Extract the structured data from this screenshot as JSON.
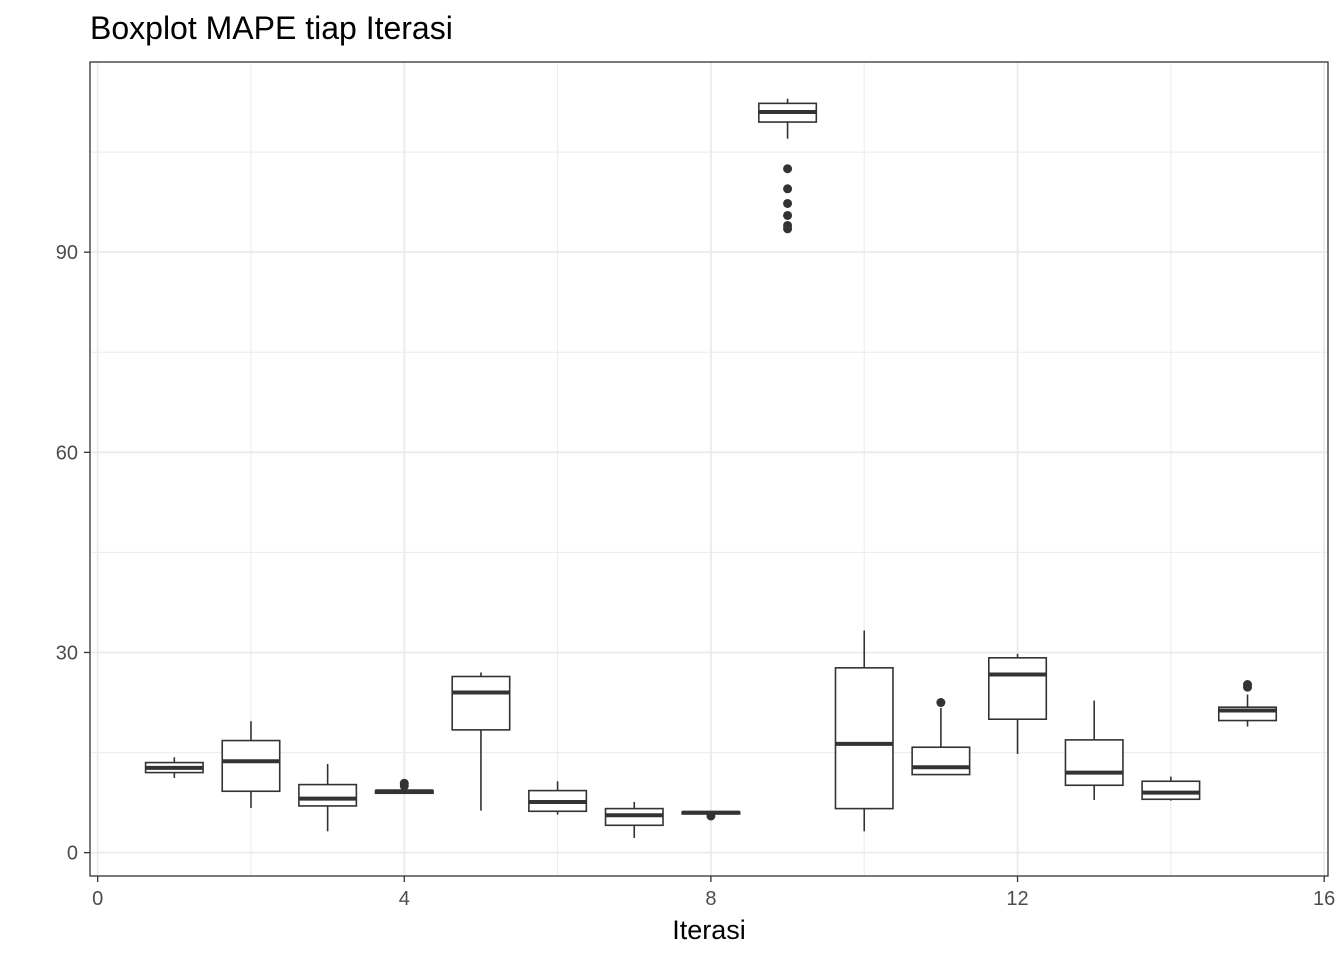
{
  "chart_data": {
    "type": "boxplot",
    "title": "Boxplot MAPE tiap Iterasi",
    "xlabel": "Iterasi",
    "ylabel": "",
    "xlim": [
      -0.1,
      16.05
    ],
    "ylim": [
      -3.5,
      118.5
    ],
    "x_ticks": [
      0,
      4,
      8,
      12,
      16
    ],
    "y_ticks": [
      0,
      30,
      60,
      90
    ],
    "x_minor": [
      2,
      6,
      10,
      14
    ],
    "y_minor": [
      15,
      45,
      75,
      105
    ],
    "grid": true,
    "colors": {
      "box": "#333333",
      "grid": "#ebebeb",
      "panel_border": "#333333",
      "tick_text": "#4d4d4d"
    },
    "boxes": [
      {
        "x": 1,
        "low": 11.2,
        "q1": 12.0,
        "median": 12.7,
        "q3": 13.5,
        "high": 14.3,
        "outliers": []
      },
      {
        "x": 2,
        "low": 6.7,
        "q1": 9.2,
        "median": 13.7,
        "q3": 16.8,
        "high": 19.7,
        "outliers": []
      },
      {
        "x": 3,
        "low": 3.2,
        "q1": 7.0,
        "median": 8.1,
        "q3": 10.2,
        "high": 13.3,
        "outliers": []
      },
      {
        "x": 4,
        "low": 8.9,
        "q1": 8.9,
        "median": 9.2,
        "q3": 9.3,
        "high": 9.4,
        "outliers": [
          10.0,
          10.4
        ]
      },
      {
        "x": 5,
        "low": 6.3,
        "q1": 18.4,
        "median": 24.0,
        "q3": 26.4,
        "high": 27.0,
        "outliers": []
      },
      {
        "x": 6,
        "low": 5.7,
        "q1": 6.2,
        "median": 7.6,
        "q3": 9.3,
        "high": 10.7,
        "outliers": []
      },
      {
        "x": 7,
        "low": 2.2,
        "q1": 4.1,
        "median": 5.6,
        "q3": 6.6,
        "high": 7.6,
        "outliers": []
      },
      {
        "x": 8,
        "low": 5.8,
        "q1": 5.8,
        "median": 6.0,
        "q3": 6.1,
        "high": 6.2,
        "outliers": [
          5.5
        ]
      },
      {
        "x": 9,
        "low": 107.0,
        "q1": 109.5,
        "median": 111.0,
        "q3": 112.3,
        "high": 113.0,
        "outliers": [
          102.5,
          99.5,
          97.3,
          95.5,
          94.0,
          93.5
        ]
      },
      {
        "x": 10,
        "low": 3.2,
        "q1": 6.6,
        "median": 16.3,
        "q3": 27.7,
        "high": 33.3,
        "outliers": []
      },
      {
        "x": 11,
        "low": 11.7,
        "q1": 11.7,
        "median": 12.8,
        "q3": 15.8,
        "high": 21.7,
        "outliers": [
          22.5
        ]
      },
      {
        "x": 12,
        "low": 14.8,
        "q1": 20.0,
        "median": 26.7,
        "q3": 29.2,
        "high": 29.8,
        "outliers": []
      },
      {
        "x": 13,
        "low": 7.9,
        "q1": 10.1,
        "median": 12.0,
        "q3": 16.9,
        "high": 22.8,
        "outliers": []
      },
      {
        "x": 14,
        "low": 7.8,
        "q1": 8.0,
        "median": 9.0,
        "q3": 10.7,
        "high": 11.4,
        "outliers": []
      },
      {
        "x": 15,
        "low": 18.9,
        "q1": 19.8,
        "median": 21.3,
        "q3": 21.8,
        "high": 23.7,
        "outliers": [
          24.8,
          25.2
        ]
      }
    ]
  }
}
